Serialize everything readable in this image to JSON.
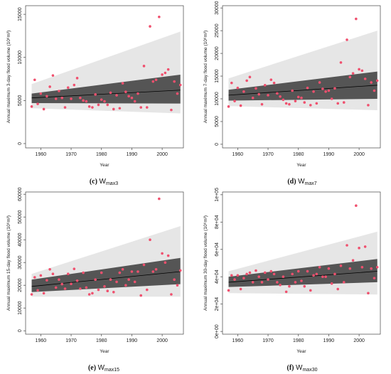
{
  "chart_data": [
    {
      "type": "scatter",
      "caption": "(c) W",
      "caption_sub": "max3",
      "xlabel": "Year",
      "ylabel": "Annual maximum 3-day flood volume (10⁶m³)",
      "x_ticks": [
        1960,
        1970,
        1980,
        1990,
        2000
      ],
      "y_ticks": [
        0,
        5000,
        10000,
        15000
      ],
      "y_tick_labels": [
        "0",
        "5000",
        "10000",
        "15000"
      ],
      "xlim": [
        1955,
        2007
      ],
      "ylim": [
        -500,
        16000
      ],
      "grid": false,
      "colors": {
        "points": "#f0506e",
        "inner_band": "#555555",
        "outer_band": "#e6e6e6",
        "trend": "#000000"
      },
      "trend_line": {
        "x": [
          1957,
          2006
        ],
        "y": [
          5300,
          6200
        ]
      },
      "inner_band": {
        "x": [
          1957,
          2006
        ],
        "lower": [
          4700,
          4650
        ],
        "upper": [
          5800,
          8000
        ]
      },
      "outer_band": {
        "x": [
          1957,
          2006
        ],
        "lower": [
          4100,
          3500
        ],
        "upper": [
          6900,
          13000
        ]
      },
      "points": {
        "x": [
          1957,
          1958,
          1959,
          1960,
          1961,
          1962,
          1963,
          1964,
          1965,
          1966,
          1967,
          1968,
          1969,
          1970,
          1971,
          1972,
          1973,
          1974,
          1975,
          1976,
          1977,
          1978,
          1979,
          1980,
          1981,
          1982,
          1983,
          1984,
          1985,
          1986,
          1987,
          1988,
          1989,
          1990,
          1991,
          1992,
          1993,
          1994,
          1995,
          1996,
          1997,
          1998,
          1999,
          2000,
          2001,
          2002,
          2003,
          2004,
          2005,
          2006
        ],
        "y": [
          4300,
          7400,
          4600,
          5800,
          4000,
          5500,
          6600,
          7900,
          5200,
          6100,
          5300,
          4200,
          6500,
          5200,
          6800,
          7600,
          5300,
          5000,
          4900,
          4300,
          4200,
          5700,
          4500,
          5100,
          4900,
          4500,
          5900,
          4000,
          5600,
          4100,
          7000,
          6000,
          5500,
          5300,
          4900,
          5800,
          4200,
          9000,
          4200,
          13600,
          7200,
          7400,
          14700,
          8000,
          8200,
          8600,
          3900,
          7200,
          5800,
          6800
        ]
      }
    },
    {
      "type": "scatter",
      "caption": "(d) W",
      "caption_sub": "max7",
      "xlabel": "Year",
      "ylabel": "Annual maximum 7-day flood volume (10⁶m³)",
      "x_ticks": [
        1960,
        1970,
        1980,
        1990,
        2000
      ],
      "y_ticks": [
        0,
        5000,
        10000,
        15000,
        20000,
        25000,
        30000
      ],
      "y_tick_labels": [
        "0",
        "5000",
        "10000",
        "15000",
        "20000",
        "25000",
        "30000"
      ],
      "xlim": [
        1955,
        2007
      ],
      "ylim": [
        -800,
        30500
      ],
      "grid": false,
      "colors": {
        "points": "#f0506e",
        "inner_band": "#555555",
        "outer_band": "#e6e6e6",
        "trend": "#000000"
      },
      "trend_line": {
        "x": [
          1957,
          2006
        ],
        "y": [
          10800,
          13000
        ]
      },
      "inner_band": {
        "x": [
          1957,
          2006
        ],
        "lower": [
          9600,
          10000
        ],
        "upper": [
          12000,
          16000
        ]
      },
      "outer_band": {
        "x": [
          1957,
          2006
        ],
        "lower": [
          8400,
          7500
        ],
        "upper": [
          14500,
          25000
        ]
      },
      "points": {
        "x": [
          1957,
          1958,
          1959,
          1960,
          1961,
          1962,
          1963,
          1964,
          1965,
          1966,
          1967,
          1968,
          1969,
          1970,
          1971,
          1972,
          1973,
          1974,
          1975,
          1976,
          1977,
          1978,
          1979,
          1980,
          1981,
          1982,
          1983,
          1984,
          1985,
          1986,
          1987,
          1988,
          1989,
          1990,
          1991,
          1992,
          1993,
          1994,
          1995,
          1996,
          1997,
          1998,
          1999,
          2000,
          2001,
          2002,
          2003,
          2004,
          2005,
          2006
        ],
        "y": [
          8300,
          13500,
          9500,
          12400,
          8500,
          11600,
          14000,
          14800,
          10200,
          12300,
          11000,
          8800,
          13000,
          10800,
          14200,
          13500,
          11200,
          10500,
          9800,
          9000,
          8800,
          11800,
          9500,
          10400,
          10200,
          9200,
          12400,
          8600,
          11600,
          9000,
          13600,
          12200,
          11600,
          11800,
          10000,
          12300,
          9000,
          18000,
          9200,
          23000,
          14800,
          15600,
          27600,
          16500,
          16200,
          14400,
          8600,
          13600,
          11800,
          14000
        ]
      }
    },
    {
      "type": "scatter",
      "caption": "(e) W",
      "caption_sub": "max15",
      "xlabel": "Year",
      "ylabel": "Annual maximum 15-day flood volume (10⁶m³)",
      "x_ticks": [
        1960,
        1970,
        1980,
        1990,
        2000
      ],
      "y_ticks": [
        0,
        10000,
        20000,
        30000,
        40000,
        50000,
        60000
      ],
      "y_tick_labels": [
        "0",
        "10000",
        "20000",
        "30000",
        "40000",
        "50000",
        "60000"
      ],
      "xlim": [
        1955,
        2007
      ],
      "ylim": [
        -1500,
        61000
      ],
      "grid": false,
      "colors": {
        "points": "#f0506e",
        "inner_band": "#555555",
        "outer_band": "#e6e6e6",
        "trend": "#000000"
      },
      "trend_line": {
        "x": [
          1957,
          2006
        ],
        "y": [
          19500,
          26000
        ]
      },
      "inner_band": {
        "x": [
          1957,
          2006
        ],
        "lower": [
          17000,
          20500
        ],
        "upper": [
          22500,
          32000
        ]
      },
      "outer_band": {
        "x": [
          1957,
          2006
        ],
        "lower": [
          15000,
          15000
        ],
        "upper": [
          25000,
          46000
        ]
      },
      "points": {
        "x": [
          1957,
          1958,
          1959,
          1960,
          1961,
          1962,
          1963,
          1964,
          1965,
          1966,
          1967,
          1968,
          1969,
          1970,
          1971,
          1972,
          1973,
          1974,
          1975,
          1976,
          1977,
          1978,
          1979,
          1980,
          1981,
          1982,
          1983,
          1984,
          1985,
          1986,
          1987,
          1988,
          1989,
          1990,
          1991,
          1992,
          1993,
          1994,
          1995,
          1996,
          1997,
          1998,
          1999,
          2000,
          2001,
          2002,
          2003,
          2004,
          2005,
          2006
        ],
        "y": [
          16000,
          23500,
          17800,
          24300,
          16500,
          22200,
          27000,
          25000,
          19000,
          22500,
          20500,
          18500,
          25000,
          20600,
          27200,
          22000,
          18500,
          25500,
          19000,
          16000,
          16500,
          22500,
          18000,
          25500,
          19500,
          17500,
          22500,
          17000,
          21500,
          25500,
          27000,
          20000,
          22500,
          26000,
          21500,
          26000,
          15500,
          29000,
          18000,
          40000,
          26000,
          27000,
          58000,
          34000,
          30000,
          33000,
          16000,
          22500,
          20000,
          26500
        ]
      }
    },
    {
      "type": "scatter",
      "caption": "(f) W",
      "caption_sub": "max30",
      "xlabel": "Year",
      "ylabel": "Annual maximum 30-day flood volume (10⁶m³)",
      "x_ticks": [
        1960,
        1970,
        1980,
        1990,
        2000
      ],
      "y_ticks": [
        0,
        20000,
        40000,
        60000,
        80000,
        100000
      ],
      "y_tick_labels": [
        "0e+00",
        "2e+04",
        "4e+04",
        "6e+04",
        "8e+04",
        "1e+05"
      ],
      "xlim": [
        1955,
        2007
      ],
      "ylim": [
        -2000,
        102000
      ],
      "grid": false,
      "colors": {
        "points": "#f0506e",
        "inner_band": "#555555",
        "outer_band": "#e6e6e6",
        "trend": "#000000"
      },
      "trend_line": {
        "x": [
          1957,
          2006
        ],
        "y": [
          36000,
          44000
        ]
      },
      "inner_band": {
        "x": [
          1957,
          2006
        ],
        "lower": [
          32500,
          36000
        ],
        "upper": [
          40000,
          53000
        ]
      },
      "outer_band": {
        "x": [
          1957,
          2006
        ],
        "lower": [
          28000,
          27000
        ],
        "upper": [
          44000,
          73000
        ]
      },
      "points": {
        "x": [
          1957,
          1958,
          1959,
          1960,
          1961,
          1962,
          1963,
          1964,
          1965,
          1966,
          1967,
          1968,
          1969,
          1970,
          1971,
          1972,
          1973,
          1974,
          1975,
          1976,
          1977,
          1978,
          1979,
          1980,
          1981,
          1982,
          1983,
          1984,
          1985,
          1986,
          1987,
          1988,
          1989,
          1990,
          1991,
          1992,
          1993,
          1994,
          1995,
          1996,
          1997,
          1998,
          1999,
          2000,
          2001,
          2002,
          2003,
          2004,
          2005,
          2006
        ],
        "y": [
          30000,
          41000,
          38000,
          41000,
          31000,
          39000,
          42000,
          43000,
          36000,
          44500,
          40000,
          36000,
          43000,
          38000,
          44000,
          42000,
          36000,
          34000,
          40000,
          29000,
          33000,
          42000,
          36000,
          44000,
          37000,
          33000,
          44000,
          30000,
          41000,
          42000,
          47000,
          40000,
          40000,
          46000,
          35000,
          42000,
          31000,
          48000,
          36000,
          63000,
          46000,
          52000,
          92000,
          61000,
          47000,
          62000,
          28000,
          46000,
          39000,
          47000
        ]
      }
    }
  ]
}
